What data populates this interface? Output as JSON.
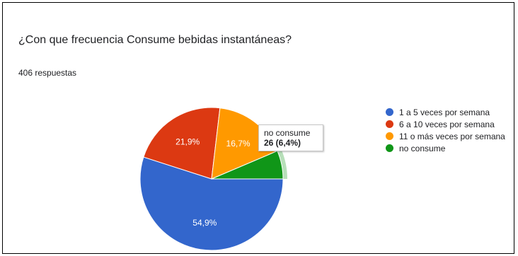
{
  "question": "¿Con que frecuencia Consume bebidas instantáneas?",
  "responses": "406 respuestas",
  "chart_data": {
    "type": "pie",
    "title": "¿Con que frecuencia Consume bebidas instantáneas?",
    "slices": [
      {
        "name": "1 a 5 veces por semana",
        "value": 54.9,
        "label": "54,9%",
        "color": "#3366cc"
      },
      {
        "name": "6 a 10 veces por semana",
        "value": 21.9,
        "label": "21,9%",
        "color": "#dc3912"
      },
      {
        "name": "11 o más veces por semana",
        "value": 16.7,
        "label": "16,7%",
        "color": "#ff9900"
      },
      {
        "name": "no consume",
        "value": 6.4,
        "label": "",
        "color": "#109618"
      }
    ],
    "legend_position": "right",
    "highlighted": "no consume"
  },
  "tooltip": {
    "title": "no consume",
    "value": "26 (6,4%)"
  }
}
